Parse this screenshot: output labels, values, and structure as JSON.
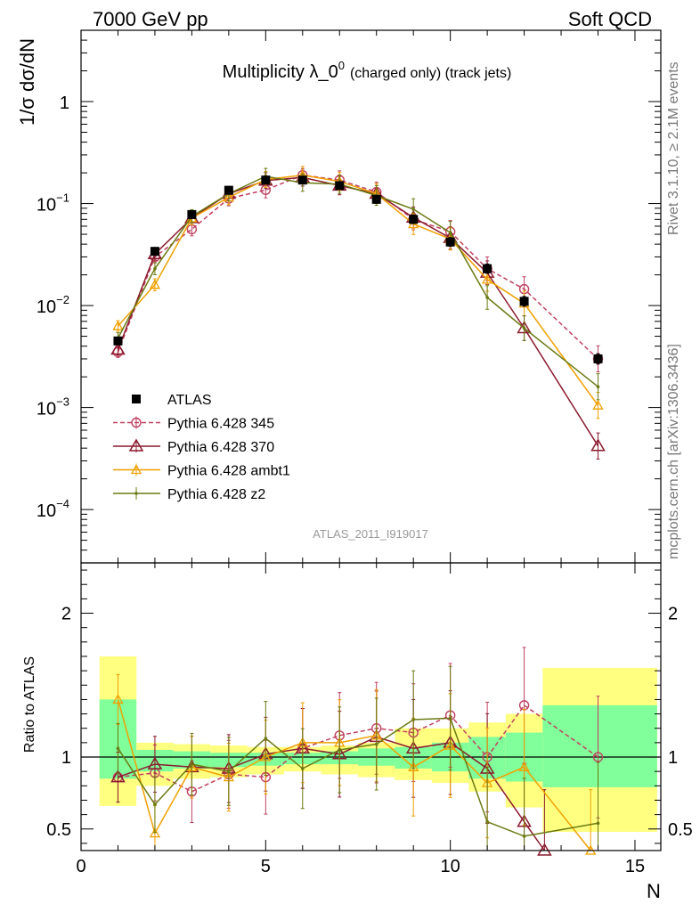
{
  "header": {
    "left": "7000 GeV pp",
    "right": "Soft QCD"
  },
  "side": {
    "rivet": "Rivet 3.1.10, ≥ 2.1M events",
    "mcplots": "mcplots.cern.ch [arXiv:1306.3436]"
  },
  "chart_data": [
    {
      "type": "scatter",
      "title": "Multiplicity λ_0^0 (charged only) (track jets)",
      "title_main": "Multiplicity λ_0",
      "title_sup": "0",
      "title_tail": "(charged only) (track jets)",
      "ylabel": "1/σ dσ/dN",
      "xlabel": "N",
      "yscale": "log",
      "xlim": [
        0,
        15.7
      ],
      "ylim": [
        3e-05,
        5
      ],
      "x_ticks": [
        0,
        5,
        10,
        15
      ],
      "y_ticks": [
        {
          "value": 0.0001,
          "base": "10",
          "exp": "−4"
        },
        {
          "value": 0.001,
          "base": "10",
          "exp": "−3"
        },
        {
          "value": 0.01,
          "base": "10",
          "exp": "−2"
        },
        {
          "value": 0.1,
          "base": "10",
          "exp": "−1"
        },
        {
          "value": 1,
          "base": "1",
          "exp": ""
        }
      ],
      "watermark": "ATLAS_2011_I919017",
      "legend_position": "lower-left",
      "series": [
        {
          "name": "ATLAS",
          "style": "data",
          "color": "#000000",
          "x": [
            1,
            2,
            3,
            4,
            5,
            6,
            7,
            8,
            9,
            10,
            11,
            12,
            14
          ],
          "y": [
            0.0045,
            0.034,
            0.078,
            0.135,
            0.17,
            0.17,
            0.15,
            0.11,
            0.07,
            0.042,
            0.023,
            0.011,
            0.003
          ]
        },
        {
          "name": "Pythia 6.428 345",
          "style": "circle-dashed",
          "color": "#c0405f",
          "x": [
            1,
            2,
            3,
            4,
            5,
            6,
            7,
            8,
            9,
            10,
            11,
            12,
            14
          ],
          "y": [
            0.0035,
            0.03,
            0.056,
            0.112,
            0.136,
            0.19,
            0.17,
            0.13,
            0.07,
            0.053,
            0.023,
            0.0145,
            0.003
          ]
        },
        {
          "name": "Pythia 6.428 370",
          "style": "triangle",
          "color": "#8b1a2e",
          "x": [
            1,
            2,
            3,
            4,
            5,
            6,
            7,
            8,
            9,
            10,
            11,
            12,
            14
          ],
          "y": [
            0.0037,
            0.032,
            0.072,
            0.125,
            0.168,
            0.18,
            0.15,
            0.125,
            0.073,
            0.046,
            0.021,
            0.006,
            0.00042
          ]
        },
        {
          "name": "Pythia 6.428 ambt1",
          "style": "triangle-small",
          "color": "#f0a000",
          "x": [
            1,
            2,
            3,
            4,
            5,
            6,
            7,
            8,
            9,
            10,
            11,
            12,
            14
          ],
          "y": [
            0.0063,
            0.016,
            0.072,
            0.115,
            0.172,
            0.19,
            0.165,
            0.125,
            0.063,
            0.045,
            0.018,
            0.0105,
            0.00105
          ]
        },
        {
          "name": "Pythia 6.428 z2",
          "style": "dot",
          "color": "#6b7a12",
          "x": [
            1,
            2,
            3,
            4,
            5,
            6,
            7,
            8,
            9,
            10,
            11,
            12,
            14
          ],
          "y": [
            0.0048,
            0.023,
            0.075,
            0.125,
            0.185,
            0.16,
            0.155,
            0.12,
            0.088,
            0.052,
            0.012,
            0.006,
            0.0016
          ]
        }
      ]
    },
    {
      "type": "line",
      "ylabel": "Ratio to ATLAS",
      "xlabel": "N",
      "xlim": [
        0,
        15.7
      ],
      "ylim": [
        0.35,
        2.35
      ],
      "y_ticks": [
        {
          "value": 0.5,
          "label": "0.5"
        },
        {
          "value": 1,
          "label": "1"
        },
        {
          "value": 2,
          "label": "2"
        }
      ],
      "bands": [
        {
          "x0": 0.5,
          "x1": 1.5,
          "y_lo": 0.66,
          "y_hi": 1.7,
          "g_lo": 0.85,
          "g_hi": 1.4
        },
        {
          "x0": 1.5,
          "x1": 2.5,
          "y_lo": 0.8,
          "y_hi": 1.1,
          "g_lo": 0.9,
          "g_hi": 1.05
        },
        {
          "x0": 2.5,
          "x1": 3.5,
          "y_lo": 0.85,
          "y_hi": 1.09,
          "g_lo": 0.92,
          "g_hi": 1.04
        },
        {
          "x0": 3.5,
          "x1": 4.5,
          "y_lo": 0.86,
          "y_hi": 1.08,
          "g_lo": 0.93,
          "g_hi": 1.03
        },
        {
          "x0": 4.5,
          "x1": 5.5,
          "y_lo": 0.88,
          "y_hi": 1.07,
          "g_lo": 0.94,
          "g_hi": 1.03
        },
        {
          "x0": 5.5,
          "x1": 6.5,
          "y_lo": 0.9,
          "y_hi": 1.07,
          "g_lo": 0.95,
          "g_hi": 1.03
        },
        {
          "x0": 6.5,
          "x1": 7.5,
          "y_lo": 0.88,
          "y_hi": 1.08,
          "g_lo": 0.95,
          "g_hi": 1.04
        },
        {
          "x0": 7.5,
          "x1": 8.5,
          "y_lo": 0.86,
          "y_hi": 1.1,
          "g_lo": 0.94,
          "g_hi": 1.06
        },
        {
          "x0": 8.5,
          "x1": 9.5,
          "y_lo": 0.84,
          "y_hi": 1.2,
          "g_lo": 0.92,
          "g_hi": 1.07
        },
        {
          "x0": 9.5,
          "x1": 10.5,
          "y_lo": 0.82,
          "y_hi": 1.2,
          "g_lo": 0.9,
          "g_hi": 1.1
        },
        {
          "x0": 10.5,
          "x1": 11.5,
          "y_lo": 0.76,
          "y_hi": 1.24,
          "g_lo": 0.85,
          "g_hi": 1.14
        },
        {
          "x0": 11.5,
          "x1": 12.5,
          "y_lo": 0.65,
          "y_hi": 1.3,
          "g_lo": 0.83,
          "g_hi": 1.17
        },
        {
          "x0": 12.5,
          "x1": 15.6,
          "y_lo": 0.48,
          "y_hi": 1.62,
          "g_lo": 0.79,
          "g_hi": 1.36
        }
      ],
      "series": [
        {
          "name": "Pythia 6.428 345",
          "style": "circle-dashed",
          "color": "#c0405f",
          "x": [
            1,
            2,
            3,
            4,
            5,
            6,
            7,
            8,
            9,
            10,
            11,
            12,
            14
          ],
          "y": [
            0.86,
            0.89,
            0.76,
            0.88,
            0.86,
            1.06,
            1.15,
            1.2,
            1.17,
            1.29,
            1.0,
            1.36,
            1.0
          ]
        },
        {
          "name": "Pythia 6.428 370",
          "style": "triangle",
          "color": "#8b1a2e",
          "x": [
            1,
            2,
            3,
            4,
            5,
            6,
            7,
            8,
            9,
            10,
            11,
            12,
            12.55
          ],
          "y": [
            0.86,
            0.95,
            0.93,
            0.92,
            1.02,
            1.06,
            1.02,
            1.14,
            1.06,
            1.1,
            0.92,
            0.55,
            0.35
          ]
        },
        {
          "name": "Pythia 6.428 ambt1",
          "style": "triangle-small",
          "color": "#f0a000",
          "x": [
            1,
            2,
            3,
            4,
            5,
            6,
            7,
            8,
            9,
            10,
            11,
            12,
            13.8
          ],
          "y": [
            1.4,
            0.47,
            0.93,
            0.86,
            1.0,
            1.1,
            1.1,
            1.15,
            0.93,
            1.08,
            0.82,
            0.93,
            0.35
          ]
        },
        {
          "name": "Pythia 6.428 z2",
          "style": "dot",
          "color": "#6b7a12",
          "x": [
            1,
            2,
            3,
            4,
            5,
            6,
            7,
            8,
            9,
            10,
            11,
            12,
            14
          ],
          "y": [
            1.06,
            0.67,
            0.95,
            0.9,
            1.13,
            0.92,
            1.05,
            1.09,
            1.26,
            1.27,
            0.55,
            0.45,
            0.54
          ]
        }
      ]
    }
  ]
}
